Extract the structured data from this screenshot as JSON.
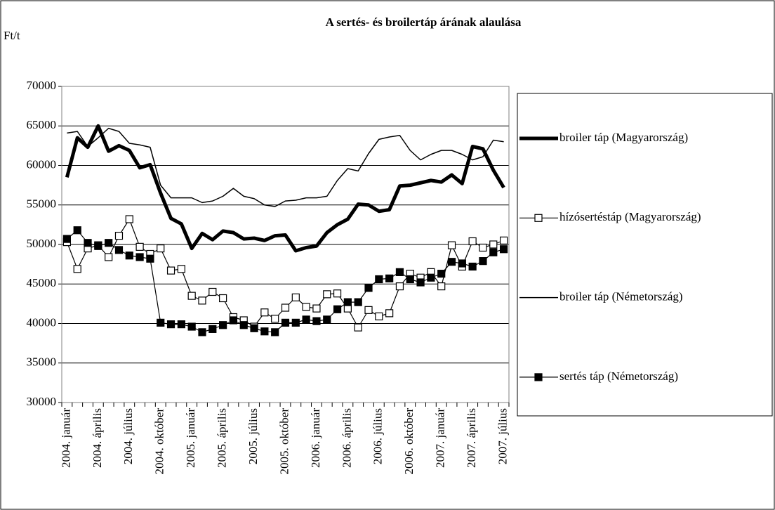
{
  "chart_data": {
    "type": "line",
    "title": "A sertés- és broilertáp árának alaulása",
    "y_label": "Ft/t",
    "categories": [
      "2004. január",
      null,
      null,
      "2004. április",
      null,
      null,
      "2004. július",
      null,
      null,
      "2004. október",
      null,
      null,
      "2005. január",
      null,
      null,
      "2005. április",
      null,
      null,
      "2005. július",
      null,
      null,
      "2005. október",
      null,
      null,
      "2006. január",
      null,
      null,
      "2006. április",
      null,
      null,
      "2006. július",
      null,
      null,
      "2006. október",
      null,
      null,
      "2007. január",
      null,
      null,
      "2007. április",
      null,
      null,
      "2007. július"
    ],
    "series": [
      {
        "name": "broiler táp (Magyarország)",
        "color": "#000000",
        "line_width": 5,
        "marker": null,
        "values": [
          58500,
          63500,
          62300,
          65000,
          61800,
          62500,
          61900,
          59700,
          60100,
          56500,
          53300,
          52600,
          49500,
          51400,
          50600,
          51700,
          51500,
          50700,
          50800,
          50500,
          51100,
          51200,
          49200,
          49600,
          49800,
          51500,
          52500,
          53200,
          55100,
          55000,
          54200,
          54400,
          57400,
          57500,
          57800,
          58100,
          57900,
          58800,
          57700,
          62400,
          62100,
          59400,
          57200
        ]
      },
      {
        "name": "hízósertéstáp (Magyarország)",
        "color": "#000000",
        "line_width": 1.2,
        "marker": "open-square",
        "values": [
          50300,
          46900,
          49500,
          49900,
          48400,
          51100,
          53200,
          49700,
          48800,
          49500,
          46700,
          46900,
          43500,
          42900,
          44000,
          43200,
          40800,
          40400,
          39600,
          41400,
          40600,
          42000,
          43300,
          42100,
          41900,
          43700,
          43800,
          41900,
          39500,
          41700,
          40900,
          41300,
          44700,
          46300,
          45800,
          46500,
          44700,
          49900,
          47200,
          50400,
          49600,
          50000,
          50500
        ]
      },
      {
        "name": "broiler táp (Németország)",
        "color": "#000000",
        "line_width": 1.5,
        "marker": null,
        "values": [
          64100,
          64300,
          62400,
          63500,
          64700,
          64300,
          62800,
          62600,
          62300,
          57500,
          55900,
          55900,
          55900,
          55300,
          55500,
          56100,
          57100,
          56100,
          55800,
          55000,
          54800,
          55500,
          55600,
          55900,
          55900,
          56100,
          58100,
          59600,
          59300,
          61500,
          63300,
          63600,
          63800,
          61900,
          60700,
          61400,
          61900,
          61900,
          61400,
          60700,
          61100,
          63200,
          63000
        ]
      },
      {
        "name": "sertés táp (Németország)",
        "color": "#000000",
        "line_width": 1.2,
        "marker": "filled-square",
        "values": [
          50700,
          51800,
          50200,
          49800,
          50200,
          49300,
          48600,
          48400,
          48200,
          40100,
          39900,
          39900,
          39600,
          38900,
          39300,
          39800,
          40400,
          39800,
          39400,
          39000,
          38900,
          40100,
          40100,
          40500,
          40300,
          40500,
          41800,
          42700,
          42700,
          44500,
          45600,
          45700,
          46500,
          45600,
          45200,
          45800,
          46300,
          47800,
          47600,
          47200,
          47900,
          49000,
          49400
        ]
      }
    ],
    "ylim": [
      30000,
      70000
    ],
    "yticks": [
      30000,
      35000,
      40000,
      45000,
      50000,
      55000,
      60000,
      65000,
      70000
    ],
    "grid": true,
    "legend": "right"
  }
}
